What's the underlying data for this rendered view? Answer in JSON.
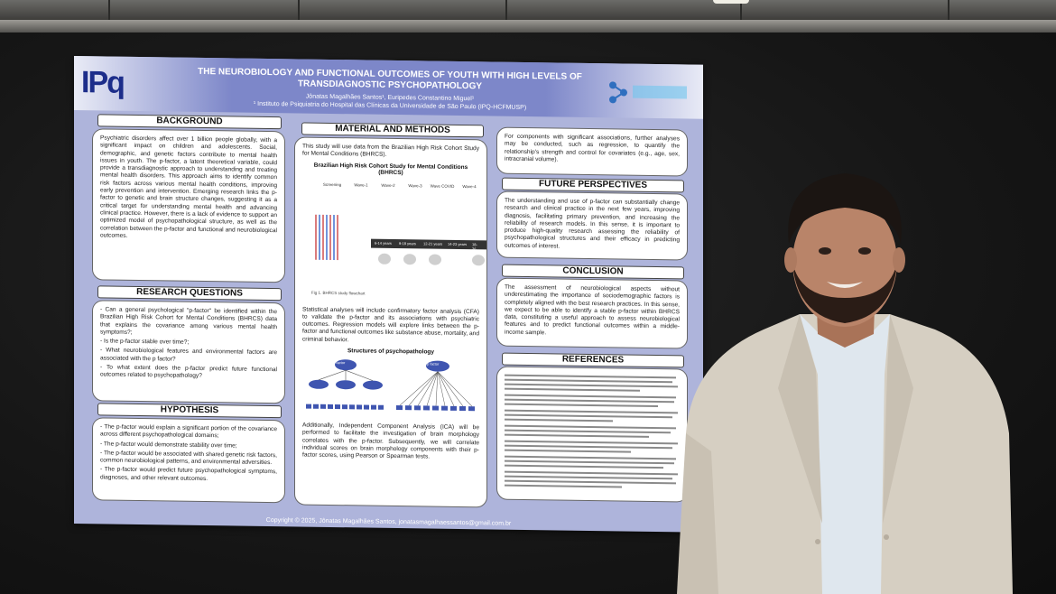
{
  "poster": {
    "title_line1": "THE NEUROBIOLOGY AND FUNCTIONAL OUTCOMES OF YOUTH WITH HIGH LEVELS OF",
    "title_line2": "TRANSDIAGNOSTIC PSYCHOPATHOLOGY",
    "authors": "Jônatas Magalhães Santos¹, Euripedes Constantino Miguel¹",
    "affiliation": "¹ Instituto de Psiquiatria do Hospital das Clínicas da Universidade de São Paulo (IPQ-HCFMUSP)",
    "logo_left": "IPq",
    "footer": "Copyright © 2025, Jônatas Magalhães Santos, jonatasmagalhaessantos@gmail.com.br",
    "background": {
      "heading": "BACKGROUND",
      "text": "Psychiatric disorders affect over 1 billion people globally, with a significant impact on children and adolescents. Social, demographic, and genetic factors contribute to mental health issues in youth. The p-factor, a latent theoretical variable, could provide a transdiagnostic approach to understanding and treating mental health disorders. This approach aims to identify common risk factors across various mental health conditions, improving early prevention and intervention. Emerging research links the p-factor to genetic and brain structure changes, suggesting it as a critical target for understanding mental health and advancing clinical practice. However, there is a lack of evidence to support an optimized model of psychopathological structure, as well as the correlation between the p-factor and functional and neurobiological outcomes."
    },
    "research_questions": {
      "heading": "RESEARCH QUESTIONS",
      "items": [
        "- Can a general psychological \"p-factor\" be identified within the Brazilian High Risk Cohort for Mental Conditions (BHRCS) data that explains the covariance among various mental health symptoms?;",
        "- Is the p-factor stable over time?;",
        "- What neurobiological features and environmental factors are associated with the p factor?",
        "- To what extent does the p-factor predict future functional outcomes related to psychopathology?"
      ]
    },
    "hypothesis": {
      "heading": "HYPOTHESIS",
      "items": [
        "- The p-factor would explain a significant portion of the covariance across different psychopathological domains;",
        "- The p-factor would demonstrate stability over time;",
        "- The p-factor would be associated with shared genetic risk factors, common neurobiological patterns, and environmental adversities.",
        "- The p-factor would predict future psychopathological symptoms, diagnoses, and other relevant outcomes."
      ]
    },
    "methods": {
      "heading": "MATERIAL AND METHODS",
      "intro": "This study will use data from the Brazilian High Risk Cohort Study for Mental Conditions (BHRCS).",
      "figure_title": "Brazilian High Risk Cohort Study for Mental Conditions (BHRCS)",
      "waves": [
        "Screening",
        "Wave-1",
        "Wave-2",
        "Wave-3",
        "Wave COVID",
        "Wave-4"
      ],
      "ages": [
        "6-14 years",
        "9-18 years",
        "12-21 years",
        "14-23 years",
        "18-26 years"
      ],
      "figure_caption": "Fig 1. BHRCS study flowchart",
      "analysis": "Statistical analyses will include confirmatory factor analysis (CFA) to validate the p-factor and its associations with psychiatric outcomes. Regression models will explore links between the p-factor and functional outcomes like substance abuse, mortality, and criminal behavior.",
      "structures_title": "Structures of psychopathology",
      "node_label": "p factor",
      "ica": "Additionally, Independent Component Analysis (ICA) will be performed to facilitate the investigation of brain morphology correlates with the p-factor. Subsequently, we will correlate individual scores on brain morphology components with their p-factor scores, using Pearson or Spearman tests."
    },
    "right_intro": "For components with significant associations, further analyses may be conducted, such as regression, to quantify the relationship's strength and control for covariates (e.g., age, sex, intracranial volume).",
    "future": {
      "heading": "FUTURE PERSPECTIVES",
      "text": "The understanding and use of p-factor can substantially change research and clinical practice in the next few years, improving diagnosis, facilitating primary prevention, and increasing the reliability of research models. In this sense, it is important to produce high-quality research assessing the reliability of psychopathological structures and their efficacy in predicting outcomes of interest."
    },
    "conclusion": {
      "heading": "CONCLUSION",
      "text": "The assessment of neurobiological aspects without underestimating the importance of sociodemographic factors is completely aligned with the best research practices. In this sense, we expect to be able to identify a stable p-factor within BHRCS data, constituting a useful approach to assess neurobiological features and to predict functional outcomes within a middle-income sample."
    },
    "references": {
      "heading": "REFERENCES"
    }
  },
  "colors": {
    "poster_bg": "#aeb4db",
    "banner": "#7d87c9",
    "wall": "#161616",
    "jacket": "#d8d2c6",
    "shirt": "#dfe7ee",
    "skin": "#b98469",
    "hair": "#1b1512"
  }
}
